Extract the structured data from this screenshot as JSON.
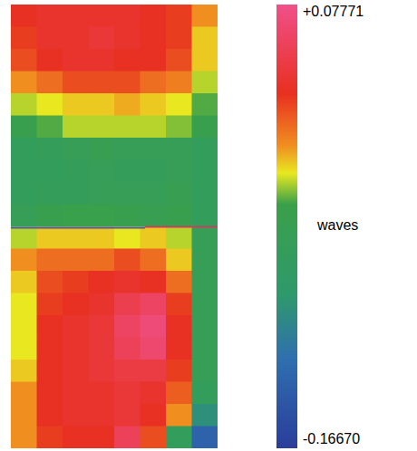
{
  "chart_data": {
    "type": "heatmap",
    "tick_labels": false,
    "cells": [
      [
        0.03,
        0.035,
        0.035,
        0.035,
        0.035,
        0.03,
        0.025,
        0.0
      ],
      [
        0.025,
        0.035,
        0.035,
        0.04,
        0.035,
        0.03,
        0.025,
        -0.01
      ],
      [
        0.02,
        0.03,
        0.035,
        0.035,
        0.03,
        0.03,
        0.02,
        -0.01
      ],
      [
        0.0,
        0.01,
        0.02,
        0.02,
        0.02,
        0.01,
        0.005,
        -0.02
      ],
      [
        -0.02,
        -0.015,
        -0.01,
        -0.01,
        -0.005,
        -0.01,
        -0.015,
        -0.03
      ],
      [
        -0.04,
        -0.03,
        -0.02,
        -0.02,
        -0.02,
        -0.02,
        -0.025,
        -0.04
      ],
      [
        -0.06,
        -0.055,
        -0.05,
        -0.045,
        -0.05,
        -0.05,
        -0.05,
        -0.06
      ],
      [
        -0.06,
        -0.06,
        -0.055,
        -0.05,
        -0.055,
        -0.055,
        -0.05,
        -0.06
      ],
      [
        -0.06,
        -0.055,
        -0.055,
        -0.05,
        -0.05,
        -0.05,
        -0.045,
        -0.06
      ],
      [
        -0.05,
        -0.04,
        -0.035,
        -0.035,
        -0.04,
        -0.045,
        -0.04,
        -0.06
      ],
      [
        -0.02,
        -0.01,
        -0.01,
        -0.01,
        -0.015,
        -0.01,
        -0.02,
        -0.05
      ],
      [
        0.0,
        0.01,
        0.01,
        0.01,
        0.02,
        0.01,
        -0.01,
        -0.05
      ],
      [
        -0.01,
        0.02,
        0.025,
        0.03,
        0.035,
        0.03,
        0.01,
        -0.05
      ],
      [
        -0.015,
        0.025,
        0.03,
        0.035,
        0.05,
        0.06,
        0.025,
        -0.05
      ],
      [
        -0.015,
        0.03,
        0.035,
        0.04,
        0.06,
        0.07,
        0.03,
        -0.05
      ],
      [
        -0.015,
        0.03,
        0.035,
        0.04,
        0.055,
        0.065,
        0.03,
        -0.05
      ],
      [
        -0.01,
        0.03,
        0.035,
        0.04,
        0.045,
        0.045,
        0.025,
        -0.05
      ],
      [
        0.0,
        0.03,
        0.035,
        0.035,
        0.04,
        0.035,
        0.015,
        -0.06
      ],
      [
        0.0,
        0.03,
        0.035,
        0.035,
        0.04,
        0.03,
        0.0,
        -0.09
      ],
      [
        0.0,
        0.025,
        0.03,
        0.03,
        0.055,
        0.02,
        -0.06,
        -0.13
      ]
    ],
    "colorbar_range": [
      -0.1667,
      0.07771
    ],
    "colorbar_ticks": [
      {
        "value": 0.07771,
        "label": "+0.07771"
      },
      {
        "value": -0.1667,
        "label": "-0.16670"
      }
    ],
    "colorbar_label": "waves"
  }
}
